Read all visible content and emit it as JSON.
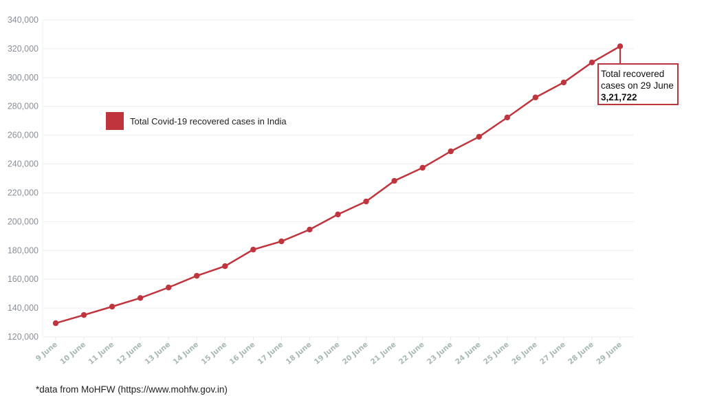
{
  "chart_data": {
    "type": "line",
    "title": "",
    "xlabel": "",
    "ylabel": "",
    "categories": [
      "9 June",
      "10 June",
      "11 June",
      "12 June",
      "13 June",
      "14 June",
      "15 June",
      "16 June",
      "17 June",
      "18 June",
      "19 June",
      "20 June",
      "21 June",
      "22 June",
      "23 June",
      "24 June",
      "25 June",
      "26 June",
      "27 June",
      "28 June",
      "29 June"
    ],
    "series": [
      {
        "name": "Total Covid-19 recovered cases in India",
        "color": "#c0353d",
        "values": [
          129500,
          135200,
          141000,
          147000,
          154300,
          162400,
          169100,
          180600,
          186300,
          194500,
          205000,
          214000,
          228300,
          237400,
          248800,
          258900,
          272300,
          286200,
          296600,
          310500,
          321722
        ]
      }
    ],
    "ylim": [
      120000,
      340000
    ],
    "yticks": [
      120000,
      140000,
      160000,
      180000,
      200000,
      220000,
      240000,
      260000,
      280000,
      300000,
      320000,
      340000
    ],
    "ytick_labels": [
      "120,000",
      "140,000",
      "160,000",
      "180,000",
      "200,000",
      "220,000",
      "240,000",
      "260,000",
      "280,000",
      "300,000",
      "320,000",
      "340,000"
    ],
    "grid": true,
    "legend_position": "upper-left-inside",
    "annotation": {
      "target": "29 June",
      "lines": [
        "Total recovered",
        "cases on 29 June"
      ],
      "value": "3,21,722"
    }
  },
  "legend": {
    "label": "Total Covid-19 recovered cases in India",
    "color": "#c0353d"
  },
  "callout": {
    "line1": "Total recovered",
    "line2": "cases on 29 June",
    "value": "3,21,722"
  },
  "footer": {
    "source": "*data from MoHFW (https://www.mohfw.gov.in)"
  },
  "colors": {
    "line": "#c0353d",
    "grid": "#eeeeee",
    "ytick": "#8a8f96",
    "xtick": "#a9b8b4"
  }
}
